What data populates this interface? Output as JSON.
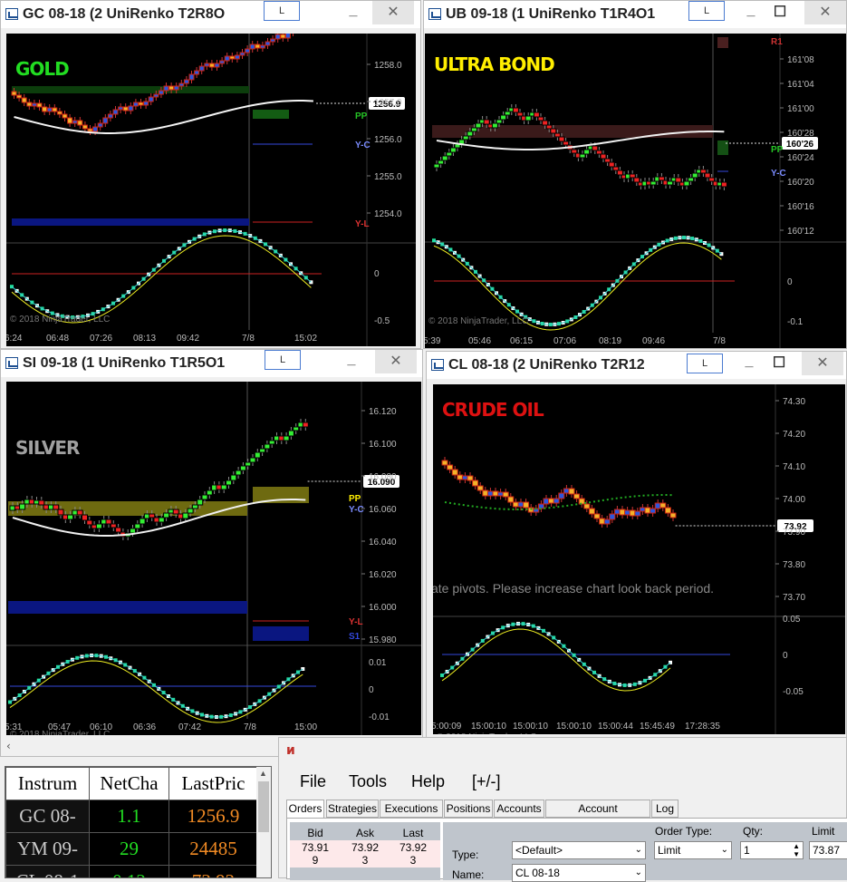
{
  "windows": {
    "gc": {
      "title": "GC 08-18 (2 UniRenko T2R8O",
      "label": "GOLD",
      "label_color": "#22dd22",
      "price_axis": [
        "1258.0",
        "1257.0",
        "1256.0",
        "1255.0",
        "1254.0"
      ],
      "last_price": "1256.9",
      "markers": {
        "pp": "PP",
        "yc": "Y-C",
        "yl": "Y-L"
      },
      "osc_axis": [
        "0",
        "-0.5"
      ],
      "time_axis": [
        "6:24",
        "06:48",
        "07:26",
        "08:13",
        "09:42",
        "7/8",
        "15:02"
      ],
      "copyright": "© 2018 NinjaTrader, LLC"
    },
    "ub": {
      "title": "UB 09-18 (1 UniRenko T1R4O1",
      "label": "ULTRA BOND",
      "label_color": "#ffee00",
      "price_axis": [
        "161'08",
        "161'04",
        "161'00",
        "160'28",
        "160'24",
        "160'20",
        "160'16",
        "160'12"
      ],
      "last_price": "160'26",
      "markers": {
        "r1": "R1",
        "pp": "PP",
        "yc": "Y-C"
      },
      "osc_axis": [
        "0",
        "-0.1"
      ],
      "time_axis": [
        "5:39",
        "05:46",
        "06:15",
        "07:06",
        "08:19",
        "09:46",
        "7/8"
      ],
      "copyright": "© 2018 NinjaTrader, LLC"
    },
    "si": {
      "title": "SI 09-18 (1 UniRenko T1R5O1",
      "label": "SILVER",
      "label_color": "#a0a0a0",
      "price_axis": [
        "16.120",
        "16.100",
        "16.080",
        "16.060",
        "16.040",
        "16.020",
        "16.000",
        "15.980"
      ],
      "last_price": "16.090",
      "markers": {
        "pp": "PP",
        "yc": "Y-C",
        "yl": "Y-L",
        "s1": "S1"
      },
      "osc_axis": [
        "0.01",
        "0",
        "-0.01"
      ],
      "time_axis": [
        "5:31",
        "05:47",
        "06:10",
        "06:36",
        "07:42",
        "7/8",
        "15:00"
      ],
      "copyright": "© 2018 NinjaTrader, LLC"
    },
    "cl": {
      "title": "CL 08-18 (2 UniRenko T2R12",
      "label": "CRUDE OIL",
      "label_color": "#dd1111",
      "price_axis": [
        "74.30",
        "74.20",
        "74.10",
        "74.00",
        "73.90",
        "73.80",
        "73.70"
      ],
      "last_price": "73.92",
      "message": "ate pivots. Please increase chart look back period.",
      "osc_axis": [
        "0.05",
        "0",
        "-0.05"
      ],
      "time_axis": [
        "5:00:09",
        "15:00:10",
        "15:00:10",
        "15:00:10",
        "15:00:44",
        "15:45:49",
        "17:28:35"
      ],
      "copyright": "© 2018 NinjaTrader, LLC"
    }
  },
  "l_button": "L",
  "minimize": "_",
  "close": "✕",
  "watchlist": {
    "headers": [
      "Instrum",
      "NetCha",
      "LastPric"
    ],
    "rows": [
      {
        "symbol": "GC 08-",
        "change": "1.1",
        "last": "1256.9"
      },
      {
        "symbol": "YM 09-",
        "change": "29",
        "last": "24485"
      },
      {
        "symbol": "CL 08-1",
        "change": "0.12",
        "last": "73.92"
      }
    ]
  },
  "order_window": {
    "menu": [
      "File",
      "Tools",
      "Help",
      "[+/-]"
    ],
    "tabs": [
      "Orders",
      "Strategies",
      "Executions",
      "Positions",
      "Accounts",
      "Account Performance",
      "Log"
    ],
    "bid_header": "Bid",
    "ask_header": "Ask",
    "last_header": "Last",
    "bid": "73.91",
    "ask": "73.92",
    "last": "73.92",
    "bid_size": "9",
    "ask_size": "3",
    "last_size": "3",
    "order_type_label": "Order Type:",
    "qty_label": "Qty:",
    "limit_label": "Limit",
    "type_label": "Type:",
    "type_value": "<Default>",
    "order_type_value": "Limit",
    "qty_value": "1",
    "limit_value": "73.87",
    "name_label": "Name:",
    "name_value": "CL 08-18"
  }
}
